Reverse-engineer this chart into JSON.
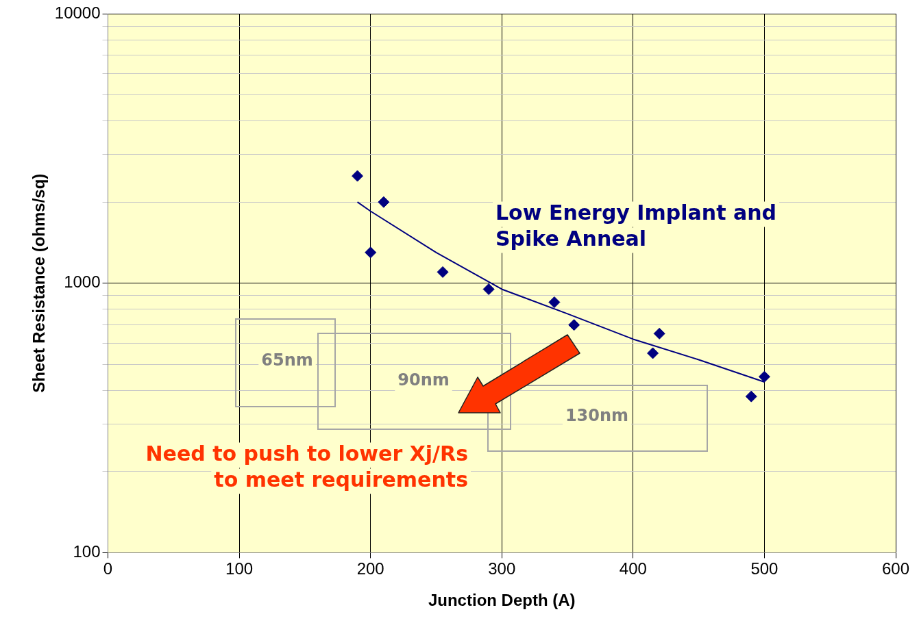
{
  "chart_data": {
    "type": "scatter",
    "xlabel": "Junction Depth (A)",
    "ylabel": "Sheet Resistance (ohms/sq)",
    "xlim": [
      0,
      600
    ],
    "xticks": [
      0,
      100,
      200,
      300,
      400,
      500,
      600
    ],
    "ylim": [
      100,
      10000
    ],
    "yticks": [
      100,
      {
        "value": 200,
        "label": null
      },
      {
        "value": 300,
        "label": null
      },
      {
        "value": 400,
        "label": null
      },
      {
        "value": 500,
        "label": null
      },
      {
        "value": 600,
        "label": null
      },
      {
        "value": 700,
        "label": null
      },
      {
        "value": 800,
        "label": null
      },
      {
        "value": 900,
        "label": null
      },
      1000,
      {
        "value": 2000,
        "label": null
      },
      {
        "value": 3000,
        "label": null
      },
      {
        "value": 4000,
        "label": null
      },
      {
        "value": 5000,
        "label": null
      },
      {
        "value": 6000,
        "label": null
      },
      {
        "value": 7000,
        "label": null
      },
      {
        "value": 8000,
        "label": null
      },
      {
        "value": 9000,
        "label": null
      },
      10000
    ],
    "log": "y",
    "grid": true,
    "legend": false,
    "marker": "diamond",
    "series": [
      {
        "color": "#000080",
        "x": [
          190,
          210,
          200,
          255,
          290,
          340,
          355,
          420,
          415,
          500,
          490
        ],
        "values": [
          2500,
          2000,
          1300,
          1100,
          950,
          850,
          700,
          650,
          550,
          450,
          380
        ]
      },
      {
        "type": "line",
        "color": "#000080",
        "marker": "none",
        "line_style": "solid",
        "x": [
          190,
          200,
          250,
          300,
          350,
          400,
          450,
          500
        ],
        "values": [
          2000,
          1850,
          1300,
          950,
          770,
          620,
          520,
          430
        ]
      }
    ],
    "annotations": [
      "Low Energy Implant and\nSpike Anneal",
      "65nm",
      "90nm",
      "130nm",
      "Need to push to lower Xj/Rs\nto meet requirements"
    ]
  }
}
